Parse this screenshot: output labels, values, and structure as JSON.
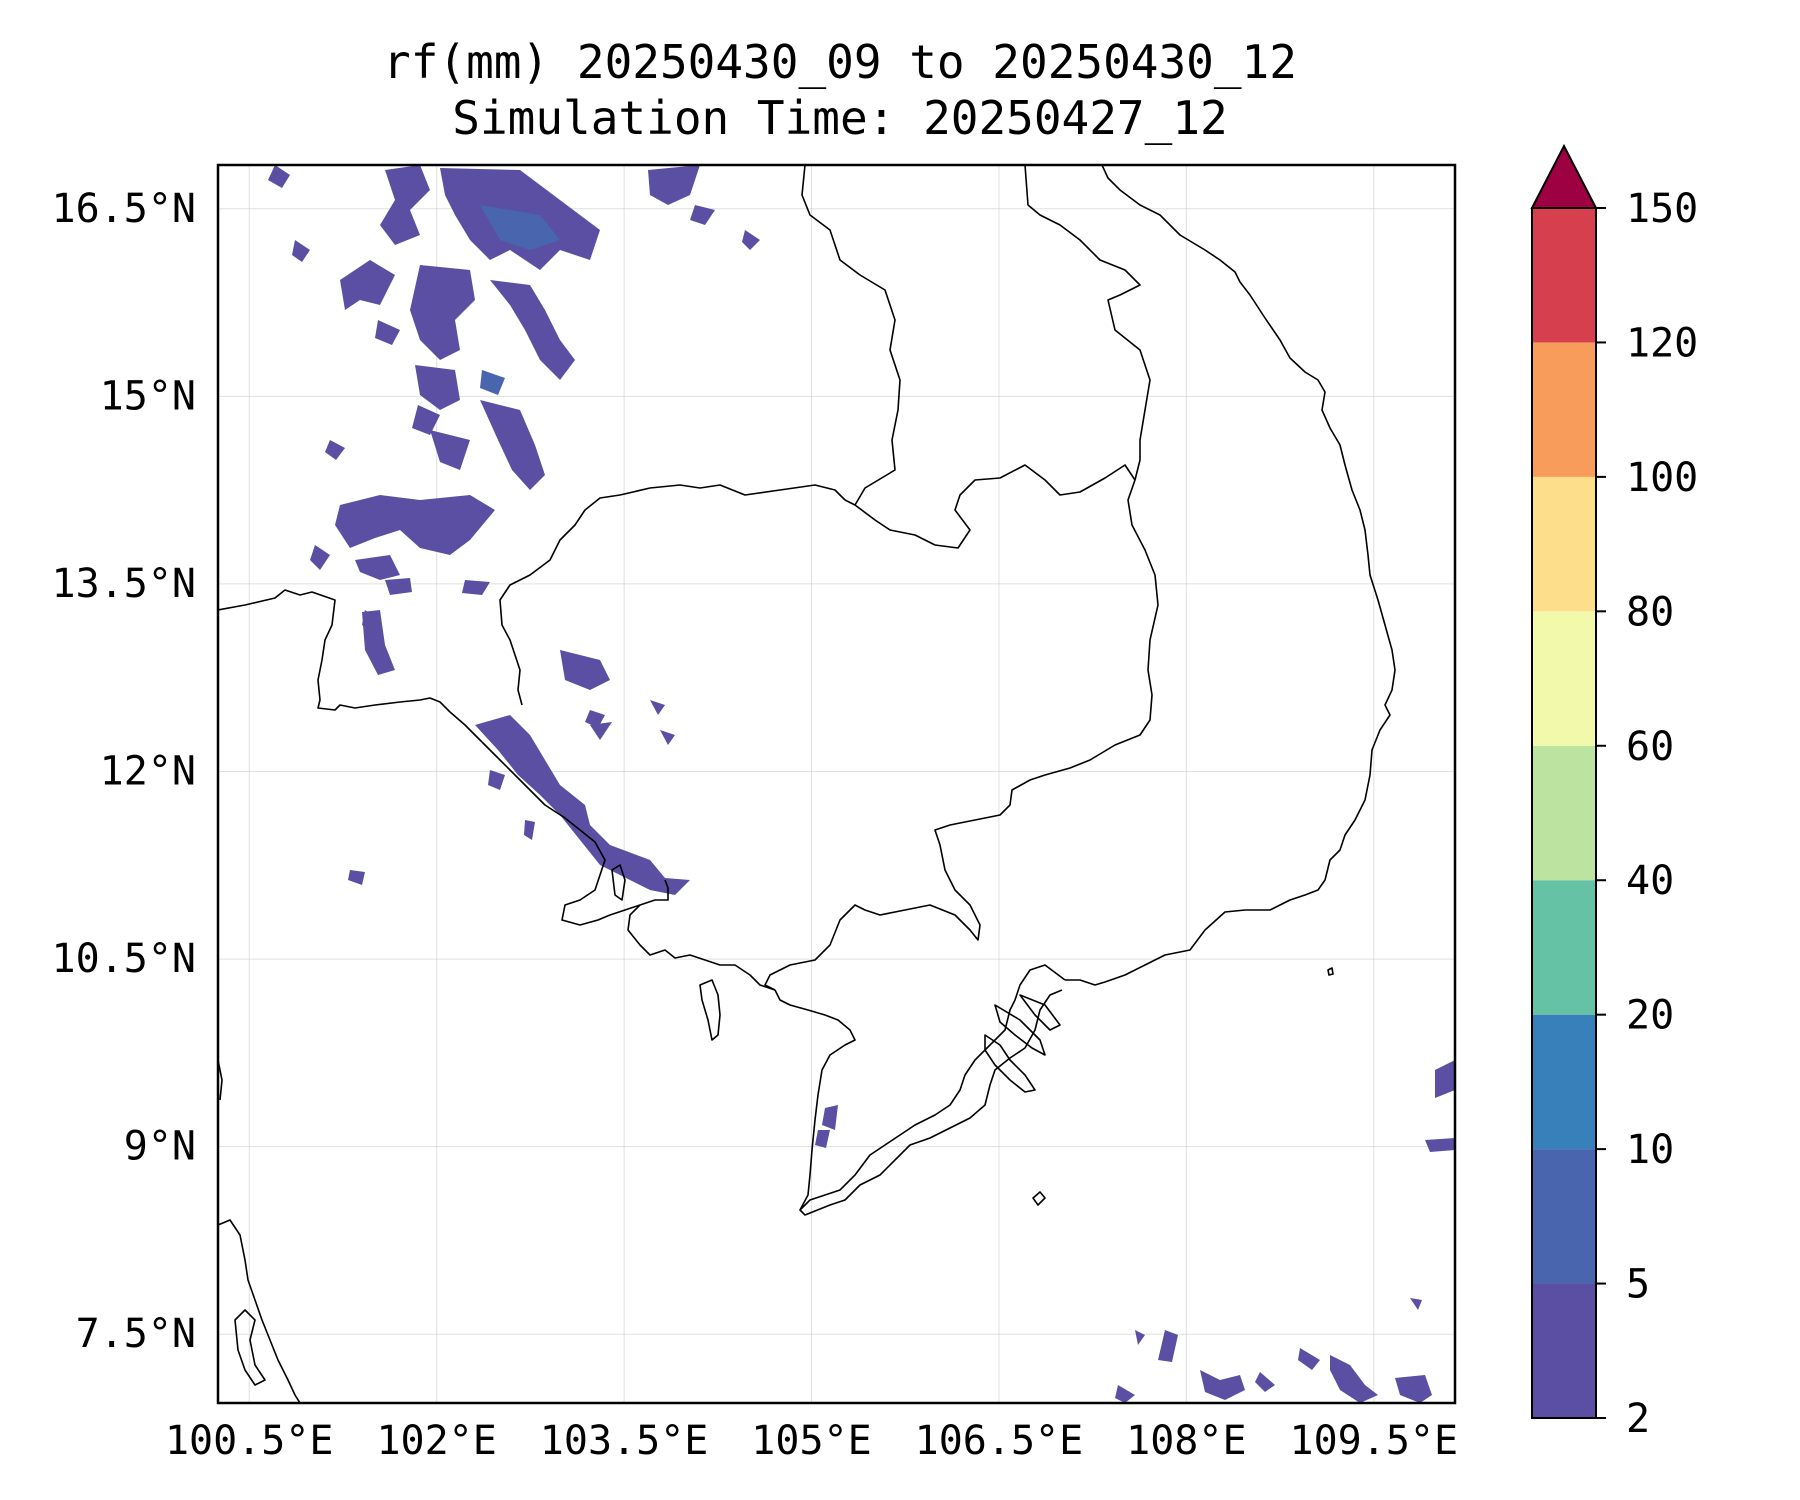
{
  "title": {
    "line1": "rf(mm) 20250430_09 to 20250430_12",
    "line2": "Simulation Time: 20250427_12"
  },
  "map": {
    "lon_range": [
      100.25,
      110.15
    ],
    "lat_range": [
      6.95,
      16.85
    ],
    "lon_ticks": [
      100.5,
      102,
      103.5,
      105,
      106.5,
      108,
      109.5
    ],
    "lon_tick_labels": [
      "100.5°E",
      "102°E",
      "103.5°E",
      "105°E",
      "106.5°E",
      "108°E",
      "109.5°E"
    ],
    "lat_ticks": [
      16.5,
      15,
      13.5,
      12,
      10.5,
      9,
      7.5
    ],
    "lat_tick_labels": [
      "16.5°N",
      "15°N",
      "13.5°N",
      "12°N",
      "10.5°N",
      "9°N",
      "7.5°N"
    ],
    "gridlines": true,
    "features": [
      "coastline",
      "country-borders",
      "rainfall-contours"
    ]
  },
  "colorbar": {
    "levels": [
      2,
      5,
      10,
      20,
      40,
      60,
      80,
      100,
      120,
      150
    ],
    "tick_labels": [
      "2",
      "5",
      "10",
      "20",
      "40",
      "60",
      "80",
      "100",
      "120",
      "150"
    ],
    "colors": [
      "#5a4fa2",
      "#4965ad",
      "#3880ba",
      "#65c2a5",
      "#bde3a0",
      "#f3f9aa",
      "#fddf8b",
      "#f89c5b",
      "#d6404e",
      "#9e0142"
    ],
    "extend": "max"
  }
}
